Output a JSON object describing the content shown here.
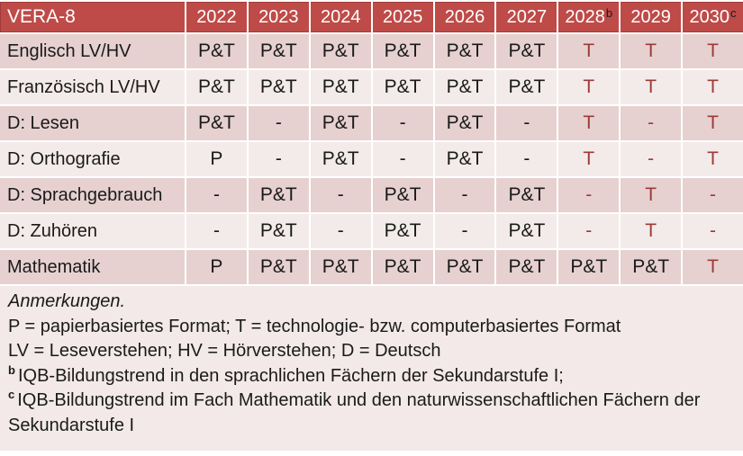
{
  "colors": {
    "header_bg": "#BE4B48",
    "header_text": "#FFFFFF",
    "band_dark": "#E6D1D0",
    "band_light": "#F3EBEA",
    "notes_bg": "#F2E9E8",
    "accent_red": "#9C3B38",
    "text": "#1A1A1A",
    "grid_line": "#FFFFFF"
  },
  "table": {
    "title": "VERA-8",
    "years": [
      {
        "label": "2022",
        "sup": ""
      },
      {
        "label": "2023",
        "sup": ""
      },
      {
        "label": "2024",
        "sup": ""
      },
      {
        "label": "2025",
        "sup": ""
      },
      {
        "label": "2026",
        "sup": ""
      },
      {
        "label": "2027",
        "sup": ""
      },
      {
        "label": "2028",
        "sup": "b"
      },
      {
        "label": "2029",
        "sup": ""
      },
      {
        "label": "2030",
        "sup": "c"
      }
    ],
    "rows": [
      {
        "label": "Englisch LV/HV",
        "cells": [
          {
            "v": "P&T",
            "red": false
          },
          {
            "v": "P&T",
            "red": false
          },
          {
            "v": "P&T",
            "red": false
          },
          {
            "v": "P&T",
            "red": false
          },
          {
            "v": "P&T",
            "red": false
          },
          {
            "v": "P&T",
            "red": false
          },
          {
            "v": "T",
            "red": true
          },
          {
            "v": "T",
            "red": true
          },
          {
            "v": "T",
            "red": true
          }
        ]
      },
      {
        "label": "Französisch LV/HV",
        "cells": [
          {
            "v": "P&T",
            "red": false
          },
          {
            "v": "P&T",
            "red": false
          },
          {
            "v": "P&T",
            "red": false
          },
          {
            "v": "P&T",
            "red": false
          },
          {
            "v": "P&T",
            "red": false
          },
          {
            "v": "P&T",
            "red": false
          },
          {
            "v": "T",
            "red": true
          },
          {
            "v": "T",
            "red": true
          },
          {
            "v": "T",
            "red": true
          }
        ]
      },
      {
        "label": "D: Lesen",
        "cells": [
          {
            "v": "P&T",
            "red": false
          },
          {
            "v": "-",
            "red": false
          },
          {
            "v": "P&T",
            "red": false
          },
          {
            "v": "-",
            "red": false
          },
          {
            "v": "P&T",
            "red": false
          },
          {
            "v": "-",
            "red": false
          },
          {
            "v": "T",
            "red": true
          },
          {
            "v": "-",
            "red": true
          },
          {
            "v": "T",
            "red": true
          }
        ]
      },
      {
        "label": "D: Orthografie",
        "cells": [
          {
            "v": "P",
            "red": false
          },
          {
            "v": "-",
            "red": false
          },
          {
            "v": "P&T",
            "red": false
          },
          {
            "v": "-",
            "red": false
          },
          {
            "v": "P&T",
            "red": false
          },
          {
            "v": "-",
            "red": false
          },
          {
            "v": "T",
            "red": true
          },
          {
            "v": "-",
            "red": true
          },
          {
            "v": "T",
            "red": true
          }
        ]
      },
      {
        "label": "D: Sprachgebrauch",
        "cells": [
          {
            "v": "-",
            "red": false
          },
          {
            "v": "P&T",
            "red": false
          },
          {
            "v": "-",
            "red": false
          },
          {
            "v": "P&T",
            "red": false
          },
          {
            "v": "-",
            "red": false
          },
          {
            "v": "P&T",
            "red": false
          },
          {
            "v": "-",
            "red": true
          },
          {
            "v": "T",
            "red": true
          },
          {
            "v": "-",
            "red": true
          }
        ]
      },
      {
        "label": "D: Zuhören",
        "cells": [
          {
            "v": "-",
            "red": false
          },
          {
            "v": "P&T",
            "red": false
          },
          {
            "v": "-",
            "red": false
          },
          {
            "v": "P&T",
            "red": false
          },
          {
            "v": "-",
            "red": false
          },
          {
            "v": "P&T",
            "red": false
          },
          {
            "v": "-",
            "red": true
          },
          {
            "v": "T",
            "red": true
          },
          {
            "v": "-",
            "red": true
          }
        ]
      },
      {
        "label": "Mathematik",
        "cells": [
          {
            "v": "P",
            "red": false
          },
          {
            "v": "P&T",
            "red": false
          },
          {
            "v": "P&T",
            "red": false
          },
          {
            "v": "P&T",
            "red": false
          },
          {
            "v": "P&T",
            "red": false
          },
          {
            "v": "P&T",
            "red": false
          },
          {
            "v": "P&T",
            "red": false
          },
          {
            "v": "P&T",
            "red": false
          },
          {
            "v": "T",
            "red": true
          }
        ]
      }
    ]
  },
  "notes": {
    "heading": "Anmerkungen.",
    "lines": [
      {
        "sup": "",
        "text": "P = papierbasiertes Format; T = technologie- bzw. computerbasiertes Format"
      },
      {
        "sup": "",
        "text": "LV = Leseverstehen; HV = Hörverstehen; D = Deutsch"
      },
      {
        "sup": "b",
        "text": "IQB-Bildungstrend in den sprachlichen Fächern der Sekundarstufe I;"
      },
      {
        "sup": "c",
        "text": "IQB-Bildungstrend im Fach Mathematik und den naturwissenschaftlichen Fächern der Sekundarstufe I"
      }
    ]
  }
}
